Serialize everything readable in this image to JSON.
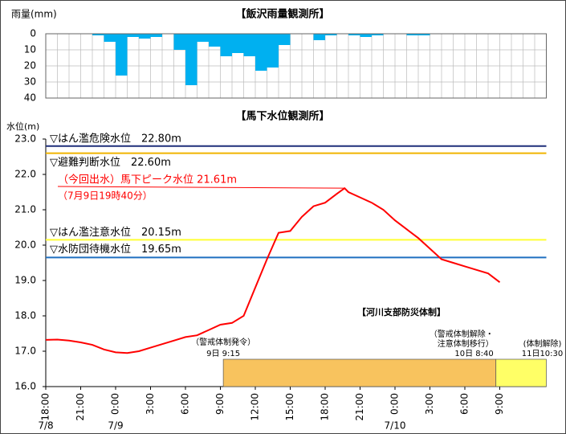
{
  "chart_data": [
    {
      "type": "bar",
      "title": "【飯沢雨量観測所】",
      "y_label": "雨量(mm)",
      "xlim": [
        0,
        43
      ],
      "ylim": [
        0,
        40
      ],
      "y_inverted": true,
      "yticks": [
        0,
        10,
        20,
        30,
        40
      ],
      "color": "#00b0f0",
      "x": [
        0,
        1,
        2,
        3,
        4,
        5,
        6,
        7,
        8,
        9,
        10,
        11,
        12,
        13,
        14,
        15,
        16,
        17,
        18,
        19,
        20,
        21,
        22,
        23,
        24,
        25,
        26,
        27,
        28,
        29,
        30,
        31,
        32,
        33,
        34,
        35,
        36,
        37,
        38,
        39,
        40,
        41,
        42
      ],
      "values": [
        0,
        0,
        0,
        0,
        1,
        5,
        26,
        2,
        3,
        2,
        0,
        10,
        32,
        5,
        8,
        14,
        12,
        14,
        23,
        21,
        7,
        0,
        0,
        4,
        1,
        0,
        1,
        2,
        1,
        0,
        0,
        1,
        1,
        0,
        0,
        0,
        0,
        0,
        0,
        0,
        0,
        0,
        0
      ]
    },
    {
      "type": "line",
      "title": "【馬下水位観測所】",
      "y_label": "水位(m)",
      "xlim": [
        0,
        43
      ],
      "ylim": [
        16,
        23
      ],
      "yticks": [
        {
          "value": 16,
          "label": "16.0"
        },
        {
          "value": 17,
          "label": "17.0"
        },
        {
          "value": 18,
          "label": "18.0"
        },
        {
          "value": 19,
          "label": "19.0"
        },
        {
          "value": 20,
          "label": "20.0"
        },
        {
          "value": 21,
          "label": "21.0"
        },
        {
          "value": 22,
          "label": "22.0"
        },
        {
          "value": 23,
          "label": "23.0"
        }
      ],
      "xticks": [
        {
          "value": 0,
          "label": "18:00"
        },
        {
          "value": 3,
          "label": "21:00"
        },
        {
          "value": 6,
          "label": "0:00"
        },
        {
          "value": 9,
          "label": "3:00"
        },
        {
          "value": 12,
          "label": "6:00"
        },
        {
          "value": 15,
          "label": "9:00"
        },
        {
          "value": 18,
          "label": "12:00"
        },
        {
          "value": 21,
          "label": "15:00"
        },
        {
          "value": 24,
          "label": "18:00"
        },
        {
          "value": 27,
          "label": "21:00"
        },
        {
          "value": 30,
          "label": "0:00"
        },
        {
          "value": 33,
          "label": "3:00"
        },
        {
          "value": 36,
          "label": "6:00"
        },
        {
          "value": 39,
          "label": "9:00"
        }
      ],
      "dates": [
        {
          "value": 0,
          "label": "7/8"
        },
        {
          "value": 6,
          "label": "7/9"
        },
        {
          "value": 30,
          "label": "7/10"
        }
      ],
      "series": [
        {
          "color": "#ff0000",
          "x": [
            0,
            1,
            2,
            3,
            4,
            5,
            6,
            7,
            8,
            9,
            10,
            11,
            12,
            13,
            14,
            15,
            16,
            17,
            18,
            19,
            20,
            21,
            22,
            23,
            24,
            25,
            25.67,
            26,
            27,
            28,
            29,
            30,
            31,
            32,
            33,
            34,
            35,
            36,
            37,
            38,
            39
          ],
          "values": [
            17.32,
            17.33,
            17.3,
            17.25,
            17.18,
            17.05,
            16.97,
            16.95,
            17.0,
            17.1,
            17.2,
            17.3,
            17.4,
            17.45,
            17.6,
            17.75,
            17.8,
            18.0,
            18.8,
            19.6,
            20.35,
            20.4,
            20.8,
            21.1,
            21.2,
            21.45,
            21.61,
            21.5,
            21.35,
            21.2,
            21.0,
            20.7,
            20.45,
            20.2,
            19.9,
            19.6,
            19.5,
            19.4,
            19.3,
            19.2,
            18.95
          ]
        }
      ],
      "reference_lines": [
        {
          "label": "▽はん濫危険水位　22.80m",
          "value": 22.8,
          "color": "#1f2f7a"
        },
        {
          "label": "▽避難判断水位　22.60m",
          "value": 22.6,
          "color": "#f0b400"
        },
        {
          "label": "▽はん濫注意水位　20.15m",
          "value": 20.15,
          "color": "#ffff33"
        },
        {
          "label": "▽水防団待機水位　19.65m",
          "value": 19.65,
          "color": "#1f6fc0"
        }
      ],
      "annotation": {
        "label": "（今回出水）馬下ピーク水位 21.61m",
        "sub": "（7月9日19時40分）",
        "x": 25.67,
        "value": 21.61
      },
      "system": {
        "title": "【河川支部防災体制】",
        "bands": [
          {
            "start": 15.25,
            "end": 38.67,
            "color": "#f8c35e",
            "note": [
              "（警戒体制発令）"
            ],
            "time": "9日 9:15"
          },
          {
            "start": 38.67,
            "end": 43,
            "color": "#ffff66",
            "note": [
              "（警戒体制解除・",
              "注意体制移行）"
            ],
            "time": "10日 8:40"
          }
        ],
        "end_note": {
          "note": "(体制解除)",
          "time": "11日10:30"
        }
      }
    }
  ]
}
